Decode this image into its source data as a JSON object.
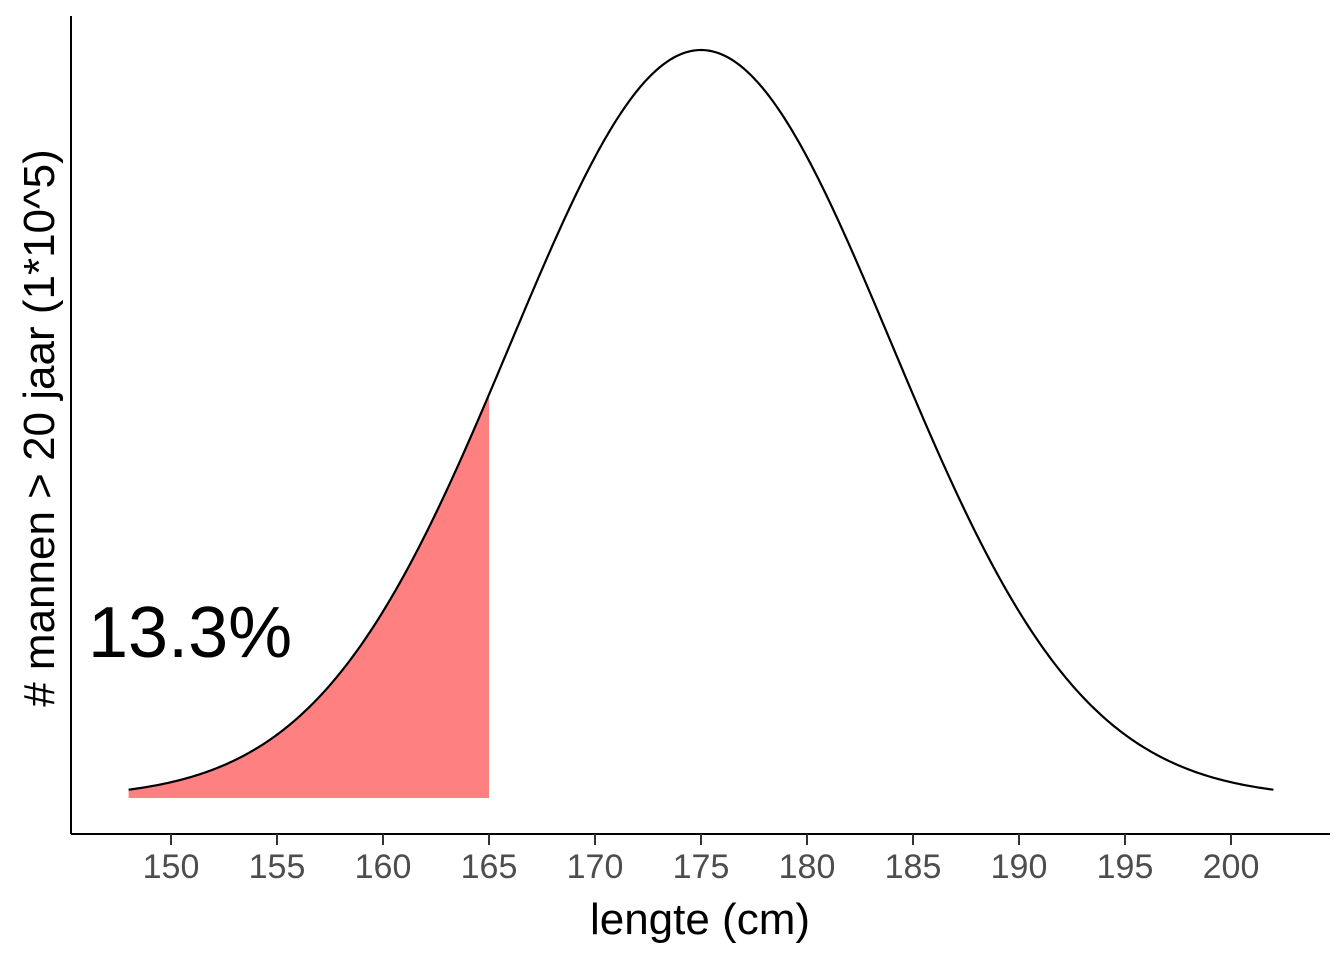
{
  "chart_data": {
    "type": "area",
    "distribution": "normal",
    "mean": 175,
    "sd": 9,
    "x_range": [
      148,
      202
    ],
    "shaded_region": {
      "from": 148,
      "to": 165,
      "color": "#ff8080"
    },
    "curve_color": "#000000",
    "xlabel": "lengte (cm)",
    "ylabel": "# mannen > 20 jaar (1*10^5)",
    "xticks": [
      150,
      155,
      160,
      165,
      170,
      175,
      180,
      185,
      190,
      195,
      200
    ],
    "xlim": [
      145.5,
      205
    ],
    "yticks": [],
    "annotation": {
      "text": "13.3%",
      "x": 150,
      "anchor": "left-of-shaded-region"
    },
    "grid": false,
    "legend": "none"
  }
}
